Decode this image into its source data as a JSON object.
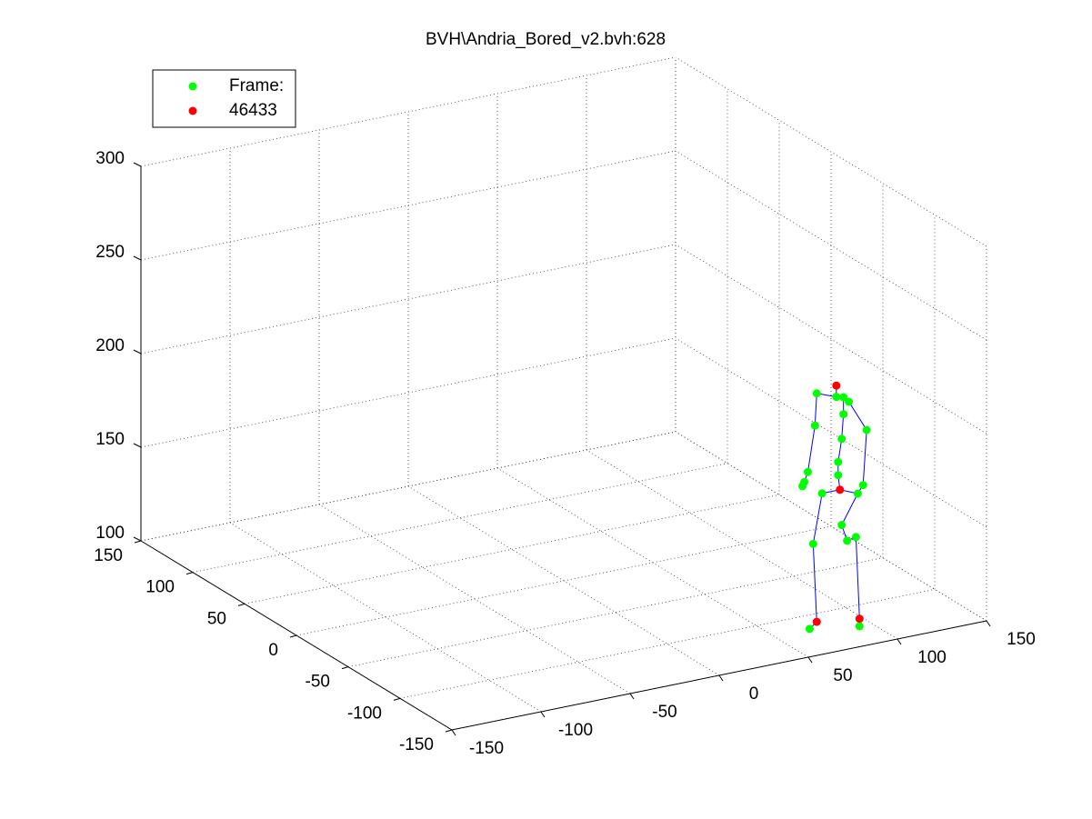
{
  "chart_data": {
    "type": "scatter3d",
    "title": "BVH\\Andria_Bored_v2.bvh:628",
    "series": [
      {
        "name": "Frame:",
        "color": "#00ff00",
        "x": [
          78,
          89,
          93,
          96,
          93,
          92,
          90,
          90,
          77,
          73,
          70,
          71,
          106,
          104,
          101,
          81,
          76,
          74,
          92,
          95,
          100,
          102
        ],
        "y": [
          -110,
          -110,
          -110,
          -110,
          -110,
          -110,
          -110,
          -110,
          -110,
          -110,
          -110,
          -110,
          -110,
          -110,
          -110,
          -110,
          -110,
          -110,
          -110,
          -110,
          -110,
          -110
        ],
        "z": [
          222,
          218,
          217,
          214,
          208,
          195,
          183,
          176,
          205,
          181,
          174,
          176,
          197,
          168,
          164,
          168,
          142,
          97,
          149,
          140,
          141,
          93
        ]
      },
      {
        "name": "46433",
        "color": "#ff0000",
        "x": [
          89,
          91,
          78,
          102
        ],
        "y": [
          -110,
          -110,
          -110,
          -110
        ],
        "z": [
          224,
          168,
          100,
          97
        ]
      }
    ],
    "bone_color": "#0000ff",
    "xlim": [
      -150,
      150
    ],
    "ylim": [
      -150,
      150
    ],
    "zlim": [
      100,
      300
    ],
    "xticks": [
      -150,
      -100,
      -50,
      0,
      50,
      100,
      150
    ],
    "yticks": [
      -150,
      -100,
      -50,
      0,
      50,
      100,
      150
    ],
    "zticks": [
      100,
      150,
      200,
      250,
      300
    ],
    "grid": true,
    "legend": "upper left"
  }
}
